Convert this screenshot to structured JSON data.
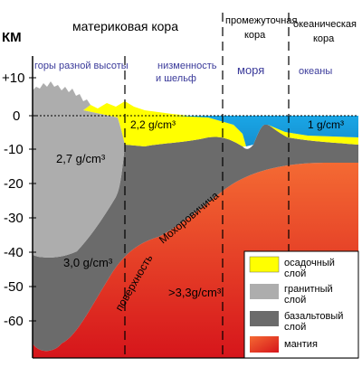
{
  "axis": {
    "unit": "КМ",
    "ticks": [
      "+10",
      "0",
      "-10",
      "-20",
      "-30",
      "-40",
      "-50",
      "-60"
    ]
  },
  "header": {
    "continental_crust": "материковая кора",
    "intermediate_crust_line1": "промежуточная",
    "intermediate_crust_line2": "кора",
    "oceanic_crust_line1": "океаническая",
    "oceanic_crust_line2": "кора"
  },
  "regions": {
    "mountains": "горы разной высоты",
    "lowland_line1": "низменность",
    "lowland_line2": "и шельф",
    "seas": "моря",
    "oceans": "океаны"
  },
  "density_labels": {
    "sediment": "2,2 g/cm³",
    "water": "1 g/cm³",
    "granite": "2,7 g/cm³",
    "basalt": "3,0 g/cm³",
    "mantle": ">3,3g/cm³"
  },
  "moho": {
    "part1": "поверхность",
    "part2": "Мохоровичича"
  },
  "legend": {
    "sedimentary_line1": "осадочный",
    "sedimentary_line2": "слой",
    "granite_line1": "гранитный",
    "granite_line2": "слой",
    "basalt_line1": "базальтовый",
    "basalt_line2": "слой",
    "mantle": "мантия"
  },
  "colors": {
    "sediment": "#ffff00",
    "water": "#1aa6e6",
    "granite": "#adadad",
    "basalt": "#6b6b6b",
    "mantle_light": "#f46a33",
    "mantle_dark": "#d6151b",
    "region_text": "#3a3a9a"
  }
}
